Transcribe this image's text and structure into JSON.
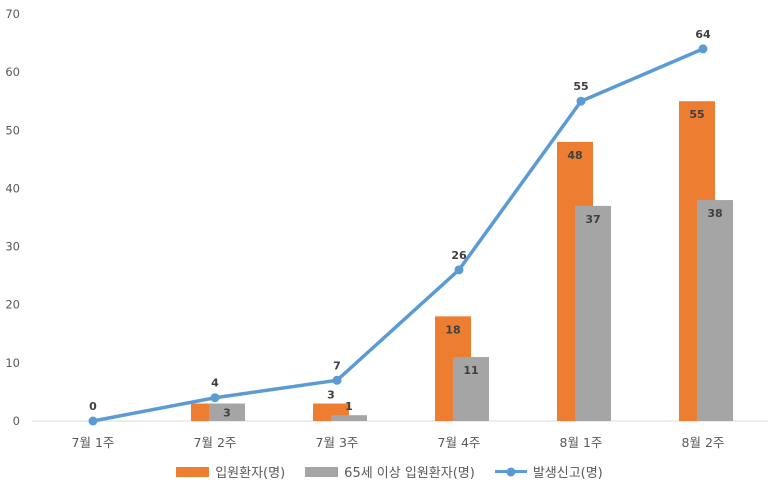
{
  "chart_data": {
    "type": "combo-bar-line",
    "categories": [
      "7월 1주",
      "7월 2주",
      "7월 3주",
      "7월 4주",
      "8월 1주",
      "8월 2주"
    ],
    "series": [
      {
        "key": "inpatients",
        "name": "입원환자(명)",
        "type": "bar",
        "color": "#ED7D31",
        "values": [
          0,
          3,
          3,
          18,
          48,
          55
        ],
        "labels": [
          null,
          null,
          "3",
          "18",
          "48",
          "55"
        ],
        "label_placement": [
          null,
          null,
          "above",
          "in",
          "in",
          "in"
        ]
      },
      {
        "key": "inpatients-65plus",
        "name": "65세 이상 입원환자(명)",
        "type": "bar",
        "color": "#A5A5A5",
        "values": [
          0,
          3,
          1,
          11,
          37,
          38
        ],
        "labels": [
          null,
          "3",
          "1",
          "11",
          "37",
          "38"
        ],
        "label_placement": [
          null,
          "in",
          "above",
          "in",
          "in",
          "in"
        ]
      },
      {
        "key": "reported-cases",
        "name": "발생신고(명)",
        "type": "line",
        "color": "#5B9BD5",
        "values": [
          0,
          4,
          7,
          26,
          55,
          64
        ],
        "labels": [
          "0",
          "4",
          "7",
          "26",
          "55",
          "64"
        ],
        "label_placement": [
          "above",
          "above",
          "above",
          "above",
          "above",
          "above"
        ]
      }
    ],
    "ylim": [
      0,
      70
    ],
    "y_ticks": [
      0,
      10,
      20,
      30,
      40,
      50,
      60,
      70
    ],
    "grid": false,
    "legend_position": "bottom"
  },
  "colors": {
    "background": "#FFFFFF",
    "axis_line": "#D9D9D9",
    "axis_text": "#595959",
    "data_label": "#404040"
  }
}
